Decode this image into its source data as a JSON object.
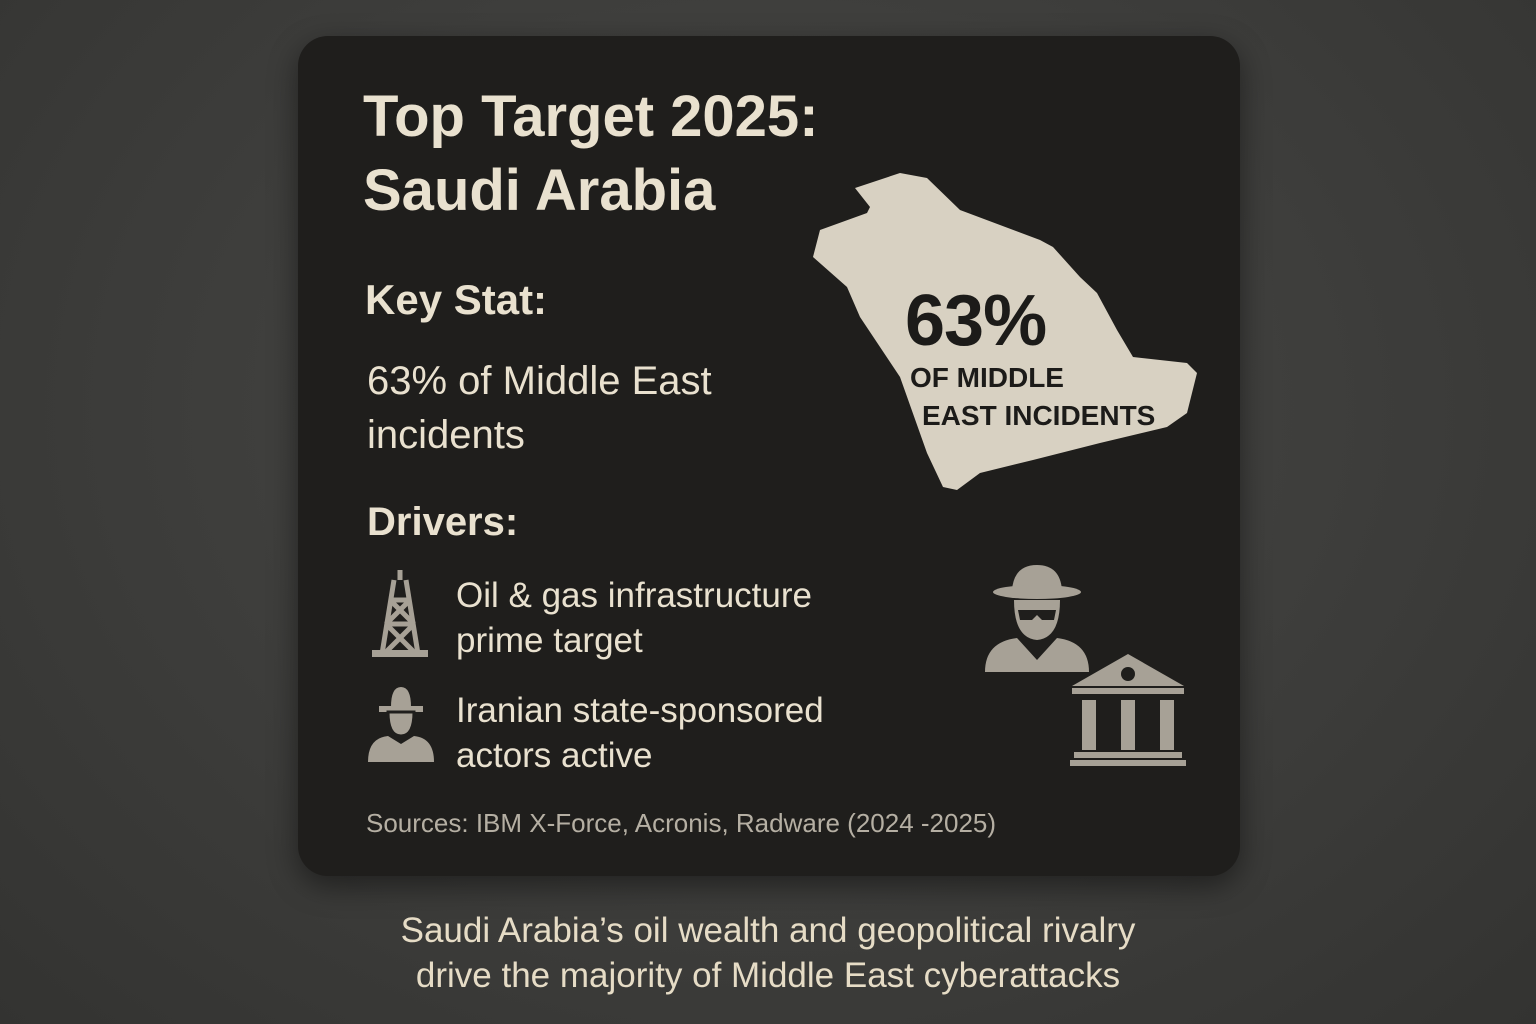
{
  "card": {
    "title_line1": "Top Target 2025:",
    "title_line2": "Saudi Arabia",
    "key_stat_heading": "Key Stat:",
    "key_stat_line1": "63% of Middle East",
    "key_stat_line2": "incidents",
    "map": {
      "percent": "63%",
      "label_line1": "OF MIDDLE",
      "label_line2": "EAST INCIDENTS",
      "icon": "saudi-arabia-map"
    },
    "drivers_heading": "Drivers:",
    "drivers": [
      {
        "icon": "oil-derrick-icon",
        "line1": "Oil & gas infrastructure",
        "line2": "prime target"
      },
      {
        "icon": "hat-person-icon",
        "line1": "Iranian state-sponsored",
        "line2": "actors active"
      }
    ],
    "decor_icons": [
      "spy-icon",
      "government-building-icon"
    ],
    "sources": "Sources: IBM X-Force, Acronis, Radware (2024 -2025)"
  },
  "caption": {
    "line1": "Saudi Arabia’s oil wealth and geopolitical rivalry",
    "line2": "drive the majority of Middle East cyberattacks"
  },
  "colors": {
    "card": "#1f1e1c",
    "text": "#e9e1cf",
    "map": "#d8d1c2",
    "icon": "#a7a196"
  }
}
